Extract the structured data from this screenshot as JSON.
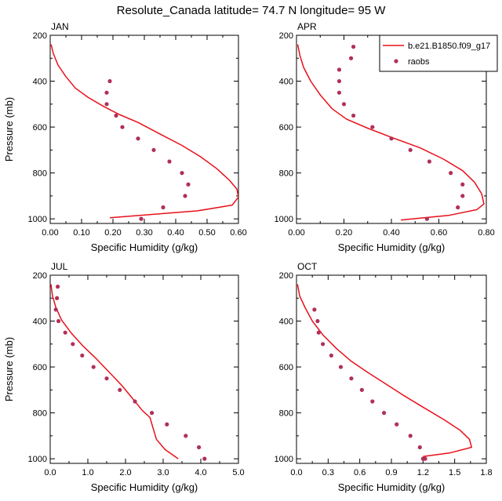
{
  "figure_title": "Resolute_Canada  latitude= 74.7 N longitude= 95 W",
  "colors": {
    "model": "#e8101a",
    "obs": "#b0305a",
    "axis": "#000000"
  },
  "legend": {
    "model_label": "b.e21.B1850.f09_g17",
    "obs_label": "raobs",
    "placement": "top-right of APR panel"
  },
  "chart_data": [
    {
      "type": "line",
      "title": "JAN",
      "xlabel": "Specific Humidity (g/kg)",
      "ylabel": "Pressure (mb)",
      "xlim": [
        0,
        0.6
      ],
      "ylim": [
        200,
        1020
      ],
      "y_inverted": true,
      "xticks": [
        0,
        0.1,
        0.2,
        0.3,
        0.4,
        0.5,
        0.6
      ],
      "xtick_labels": [
        "0.00",
        "0.10",
        "0.20",
        "0.30",
        "0.40",
        "0.50",
        "0.60"
      ],
      "yticks": [
        200,
        400,
        600,
        800,
        1000
      ],
      "ytick_labels": [
        "200",
        "400",
        "600",
        "800",
        "1000"
      ],
      "model": {
        "x": [
          0.003,
          0.01,
          0.025,
          0.05,
          0.08,
          0.12,
          0.17,
          0.22,
          0.28,
          0.35,
          0.42,
          0.48,
          0.53,
          0.57,
          0.595,
          0.6,
          0.58,
          0.47,
          0.19
        ],
        "y": [
          240,
          280,
          330,
          380,
          430,
          470,
          510,
          545,
          580,
          630,
          680,
          730,
          780,
          830,
          870,
          905,
          940,
          965,
          995
        ]
      },
      "obs": {
        "x": [
          0.19,
          0.18,
          0.18,
          0.21,
          0.23,
          0.28,
          0.33,
          0.38,
          0.42,
          0.44,
          0.43,
          0.36,
          0.29
        ],
        "y": [
          400,
          450,
          500,
          550,
          600,
          650,
          700,
          750,
          800,
          850,
          900,
          950,
          1000
        ]
      }
    },
    {
      "type": "line",
      "title": "APR",
      "xlabel": "Specific Humidity (g/kg)",
      "ylabel": "",
      "xlim": [
        0,
        0.8
      ],
      "ylim": [
        200,
        1020
      ],
      "y_inverted": true,
      "xticks": [
        0,
        0.2,
        0.4,
        0.6,
        0.8
      ],
      "xtick_labels": [
        "0.00",
        "0.20",
        "0.40",
        "0.60",
        "0.80"
      ],
      "yticks": [
        200,
        400,
        600,
        800,
        1000
      ],
      "ytick_labels": [
        "200",
        "400",
        "600",
        "800",
        "1000"
      ],
      "model": {
        "x": [
          0.005,
          0.015,
          0.03,
          0.06,
          0.1,
          0.15,
          0.21,
          0.3,
          0.4,
          0.52,
          0.62,
          0.7,
          0.75,
          0.78,
          0.79,
          0.76,
          0.64,
          0.44
        ],
        "y": [
          240,
          290,
          340,
          400,
          460,
          520,
          565,
          605,
          645,
          690,
          740,
          790,
          840,
          890,
          935,
          960,
          985,
          1005
        ]
      },
      "obs": {
        "x": [
          0.24,
          0.23,
          0.18,
          0.18,
          0.18,
          0.2,
          0.24,
          0.32,
          0.4,
          0.48,
          0.56,
          0.65,
          0.7,
          0.7,
          0.68,
          0.55
        ],
        "y": [
          250,
          300,
          350,
          400,
          450,
          500,
          550,
          600,
          650,
          700,
          750,
          800,
          850,
          900,
          950,
          1000
        ]
      }
    },
    {
      "type": "line",
      "title": "JUL",
      "xlabel": "Specific Humidity (g/kg)",
      "ylabel": "Pressure (mb)",
      "xlim": [
        0,
        5.0
      ],
      "ylim": [
        200,
        1020
      ],
      "y_inverted": true,
      "xticks": [
        0,
        1,
        2,
        3,
        4,
        5
      ],
      "xtick_labels": [
        "0.0",
        "1.0",
        "2.0",
        "3.0",
        "4.0",
        "5.0"
      ],
      "yticks": [
        200,
        400,
        600,
        800,
        1000
      ],
      "ytick_labels": [
        "200",
        "400",
        "600",
        "800",
        "1000"
      ],
      "model": {
        "x": [
          0.02,
          0.06,
          0.15,
          0.3,
          0.55,
          0.85,
          1.2,
          1.55,
          1.9,
          2.2,
          2.45,
          2.65,
          2.72,
          2.82,
          3.05,
          3.4
        ],
        "y": [
          240,
          290,
          340,
          395,
          450,
          505,
          560,
          620,
          680,
          740,
          790,
          820,
          860,
          915,
          960,
          1000
        ]
      },
      "obs": {
        "x": [
          0.2,
          0.18,
          0.15,
          0.22,
          0.4,
          0.6,
          0.85,
          1.15,
          1.5,
          1.85,
          2.25,
          2.7,
          3.1,
          3.6,
          3.95,
          4.1
        ],
        "y": [
          250,
          300,
          350,
          400,
          450,
          500,
          550,
          600,
          650,
          700,
          750,
          800,
          850,
          900,
          950,
          1000
        ]
      }
    },
    {
      "type": "line",
      "title": "OCT",
      "xlabel": "Specific Humidity (g/kg)",
      "ylabel": "",
      "xlim": [
        0,
        1.8
      ],
      "ylim": [
        200,
        1020
      ],
      "y_inverted": true,
      "xticks": [
        0,
        0.3,
        0.6,
        0.9,
        1.2,
        1.5,
        1.8
      ],
      "xtick_labels": [
        "0.0",
        "0.3",
        "0.6",
        "0.9",
        "1.2",
        "1.5",
        "1.8"
      ],
      "yticks": [
        200,
        400,
        600,
        800,
        1000
      ],
      "ytick_labels": [
        "200",
        "400",
        "600",
        "800",
        "1000"
      ],
      "model": {
        "x": [
          0.01,
          0.03,
          0.08,
          0.15,
          0.25,
          0.38,
          0.52,
          0.68,
          0.85,
          1.02,
          1.2,
          1.4,
          1.55,
          1.64,
          1.66,
          1.45,
          1.2
        ],
        "y": [
          240,
          290,
          340,
          400,
          460,
          520,
          575,
          625,
          675,
          725,
          775,
          830,
          875,
          915,
          950,
          975,
          990
        ]
      },
      "obs": {
        "x": [
          0.17,
          0.2,
          0.21,
          0.25,
          0.33,
          0.42,
          0.52,
          0.62,
          0.72,
          0.83,
          0.95,
          1.08,
          1.17,
          1.22,
          1.2
        ],
        "y": [
          350,
          400,
          450,
          500,
          550,
          600,
          650,
          700,
          750,
          800,
          850,
          900,
          950,
          1000,
          1000
        ]
      }
    }
  ]
}
